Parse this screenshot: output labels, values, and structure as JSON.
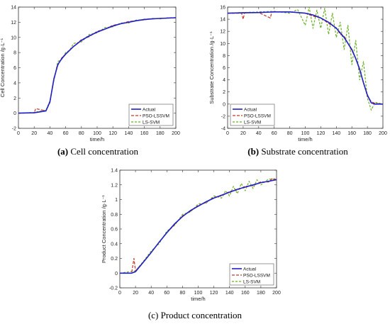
{
  "colors": {
    "actual": "#1f1fc8",
    "pso": "#c0392b",
    "ls": "#6ab023",
    "axis": "#333333"
  },
  "legend_labels": [
    "Actual",
    "PSO-LSSVM",
    "LS-SVM"
  ],
  "chart_data": [
    {
      "type": "line",
      "caption_letter": "(a)",
      "caption_text": " Cell concentration",
      "xlabel": "time/h",
      "ylabel": "Cell Concentration /g·L⁻¹",
      "xlim": [
        0,
        200
      ],
      "ylim": [
        -2,
        14
      ],
      "xticks": [
        0,
        20,
        40,
        60,
        80,
        100,
        120,
        140,
        160,
        180,
        200
      ],
      "yticks": [
        -2,
        0,
        2,
        4,
        6,
        8,
        10,
        12,
        14
      ],
      "legend_position": "lower-right",
      "series": [
        {
          "name": "Actual",
          "x": [
            0,
            20,
            35,
            40,
            45,
            50,
            55,
            60,
            70,
            80,
            90,
            100,
            110,
            120,
            130,
            140,
            150,
            160,
            170,
            180,
            190,
            200
          ],
          "y": [
            0,
            0.05,
            0.3,
            1.5,
            4.5,
            6.4,
            7.2,
            7.8,
            8.8,
            9.6,
            10.2,
            10.7,
            11.1,
            11.5,
            11.8,
            12.0,
            12.2,
            12.35,
            12.45,
            12.5,
            12.55,
            12.6
          ]
        },
        {
          "name": "PSO-LSSVM",
          "x": [
            0,
            20,
            22,
            35,
            40,
            45,
            50,
            55,
            60,
            70,
            80,
            90,
            100,
            110,
            120,
            130,
            140,
            150,
            160,
            170,
            180,
            190,
            200
          ],
          "y": [
            0,
            0.05,
            0.6,
            0.3,
            1.4,
            4.6,
            6.3,
            7.3,
            7.8,
            8.8,
            9.7,
            10.1,
            10.8,
            11.1,
            11.6,
            11.8,
            12.1,
            12.2,
            12.4,
            12.45,
            12.5,
            12.55,
            12.6
          ]
        },
        {
          "name": "LS-SVM",
          "x": [
            0,
            20,
            35,
            40,
            45,
            50,
            55,
            60,
            65,
            70,
            80,
            90,
            100,
            110,
            120,
            130,
            140,
            150,
            160,
            170,
            180,
            190,
            200
          ],
          "y": [
            0,
            0.1,
            0.4,
            1.6,
            4.3,
            6.8,
            7.1,
            8.0,
            8.3,
            9.2,
            9.4,
            10.4,
            10.6,
            11.3,
            11.4,
            11.9,
            11.9,
            12.3,
            12.3,
            12.5,
            12.45,
            12.6,
            12.6
          ]
        }
      ]
    },
    {
      "type": "line",
      "caption_letter": "(b)",
      "caption_text": " Substrate concentration",
      "xlabel": "time/h",
      "ylabel": "Substrate Concentration /g·L⁻¹",
      "xlim": [
        0,
        200
      ],
      "ylim": [
        -4,
        16
      ],
      "xticks": [
        0,
        20,
        40,
        60,
        80,
        100,
        120,
        140,
        160,
        180,
        200
      ],
      "yticks": [
        -4,
        -2,
        0,
        2,
        4,
        6,
        8,
        10,
        12,
        14,
        16
      ],
      "legend_position": "lower-left",
      "series": [
        {
          "name": "Actual",
          "x": [
            0,
            20,
            40,
            60,
            80,
            100,
            110,
            120,
            130,
            140,
            150,
            160,
            165,
            170,
            175,
            180,
            185,
            190,
            200
          ],
          "y": [
            15,
            15.05,
            15.1,
            15.2,
            15.2,
            15.0,
            14.7,
            14.2,
            13.5,
            12.5,
            11.0,
            9.0,
            7.5,
            5.8,
            3.5,
            1.5,
            0.2,
            0.0,
            0.0
          ]
        },
        {
          "name": "PSO-LSSVM",
          "x": [
            0,
            18,
            20,
            22,
            40,
            55,
            57,
            60,
            80,
            100,
            110,
            120,
            130,
            140,
            145,
            150,
            160,
            165,
            170,
            175,
            180,
            185,
            190,
            200
          ],
          "y": [
            15,
            15,
            14,
            15.1,
            15.1,
            14.2,
            15.2,
            15.2,
            15.2,
            15.0,
            14.5,
            14.2,
            13.3,
            12.6,
            11.5,
            11.2,
            8.8,
            7.6,
            5.6,
            3.6,
            1.3,
            0.4,
            0.1,
            0.0
          ]
        },
        {
          "name": "LS-SVM",
          "x": [
            0,
            40,
            60,
            80,
            90,
            100,
            105,
            110,
            115,
            120,
            125,
            130,
            135,
            140,
            145,
            150,
            155,
            160,
            165,
            170,
            175,
            180,
            185,
            190,
            200
          ],
          "y": [
            15,
            15.2,
            15.3,
            15.0,
            15.6,
            13.0,
            16.0,
            12.5,
            15.5,
            12.5,
            15.8,
            11.5,
            15.0,
            11.0,
            13.5,
            9.0,
            13.0,
            6.5,
            10.5,
            4.0,
            7.0,
            1.0,
            -1.0,
            0.3,
            0.0
          ]
        }
      ]
    },
    {
      "type": "line",
      "caption_letter": "",
      "caption_text": "(c) Product concentration",
      "xlabel": "time/h",
      "ylabel": "Product Concentration /g·L⁻¹",
      "xlim": [
        0,
        200
      ],
      "ylim": [
        -0.2,
        1.4
      ],
      "xticks": [
        0,
        20,
        40,
        60,
        80,
        100,
        120,
        140,
        160,
        180,
        200
      ],
      "yticks": [
        -0.2,
        0,
        0.2,
        0.4,
        0.6,
        0.8,
        1,
        1.2,
        1.4
      ],
      "legend_position": "lower-right",
      "series": [
        {
          "name": "Actual",
          "x": [
            0,
            15,
            20,
            30,
            40,
            50,
            60,
            70,
            80,
            90,
            100,
            110,
            120,
            130,
            140,
            150,
            160,
            170,
            180,
            190,
            200
          ],
          "y": [
            0,
            0,
            0.02,
            0.15,
            0.28,
            0.42,
            0.55,
            0.67,
            0.77,
            0.85,
            0.91,
            0.97,
            1.02,
            1.06,
            1.1,
            1.14,
            1.17,
            1.2,
            1.23,
            1.25,
            1.27
          ]
        },
        {
          "name": "PSO-LSSVM",
          "x": [
            0,
            15,
            18,
            20,
            30,
            40,
            50,
            60,
            70,
            80,
            90,
            100,
            110,
            120,
            130,
            140,
            150,
            160,
            170,
            180,
            190,
            195,
            200
          ],
          "y": [
            0,
            0,
            0.2,
            0.03,
            0.15,
            0.28,
            0.42,
            0.55,
            0.66,
            0.78,
            0.84,
            0.92,
            0.96,
            1.03,
            1.05,
            1.11,
            1.13,
            1.18,
            1.19,
            1.24,
            1.24,
            1.29,
            1.27
          ]
        },
        {
          "name": "LS-SVM",
          "x": [
            0,
            20,
            30,
            40,
            50,
            60,
            70,
            80,
            90,
            100,
            110,
            120,
            130,
            135,
            140,
            145,
            150,
            155,
            160,
            165,
            170,
            175,
            180,
            190,
            200
          ],
          "y": [
            0,
            0.03,
            0.16,
            0.3,
            0.4,
            0.57,
            0.65,
            0.8,
            0.83,
            0.94,
            0.95,
            1.05,
            1.02,
            1.12,
            1.05,
            1.18,
            1.08,
            1.22,
            1.12,
            1.25,
            1.15,
            1.27,
            1.2,
            1.28,
            1.27
          ]
        }
      ]
    }
  ]
}
